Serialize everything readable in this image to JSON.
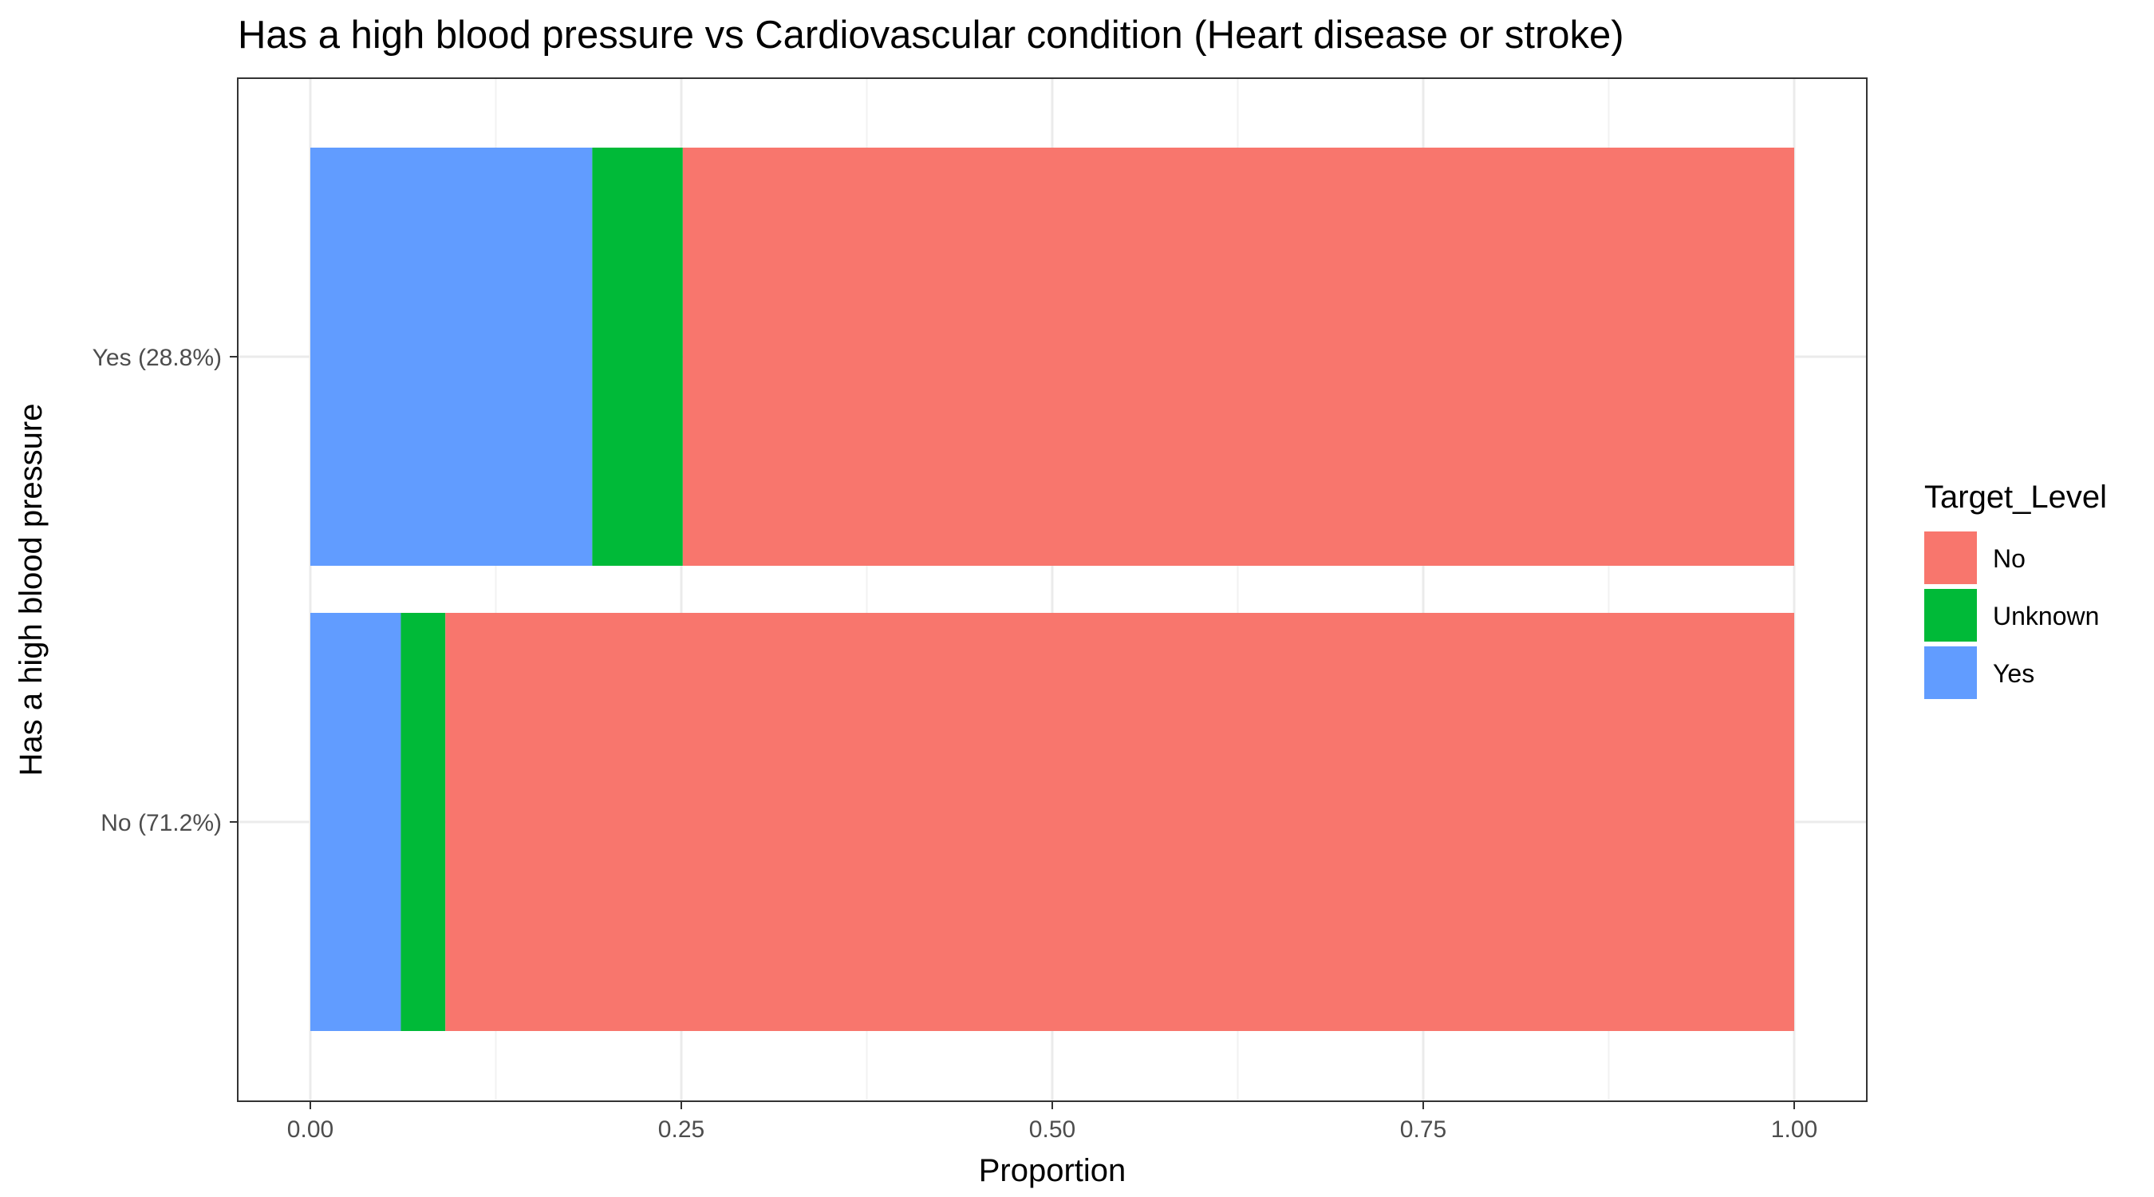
{
  "chart_data": {
    "type": "bar",
    "orientation": "horizontal",
    "stacked": true,
    "title": "Has a high blood pressure vs Cardiovascular condition (Heart disease or stroke)",
    "xlabel": "Proportion",
    "ylabel": "Has a high blood pressure",
    "xlim": [
      0,
      1
    ],
    "x_ticks": [
      0,
      0.25,
      0.5,
      0.75,
      1
    ],
    "x_tick_labels": [
      "0.00",
      "0.25",
      "0.50",
      "0.75",
      "1.00"
    ],
    "categories": [
      "Yes (28.8%)",
      "No (71.2%)"
    ],
    "series": [
      {
        "name": "Yes",
        "color": "#619CFF",
        "values": [
          0.19,
          0.061
        ]
      },
      {
        "name": "Unknown",
        "color": "#00BA38",
        "values": [
          0.061,
          0.03
        ]
      },
      {
        "name": "No",
        "color": "#F8766D",
        "values": [
          0.749,
          0.909
        ]
      }
    ],
    "legend": {
      "title": "Target_Level",
      "position": "right",
      "entries": [
        {
          "label": "No",
          "color": "#F8766D"
        },
        {
          "label": "Unknown",
          "color": "#00BA38"
        },
        {
          "label": "Yes",
          "color": "#619CFF"
        }
      ]
    },
    "grid": true
  }
}
